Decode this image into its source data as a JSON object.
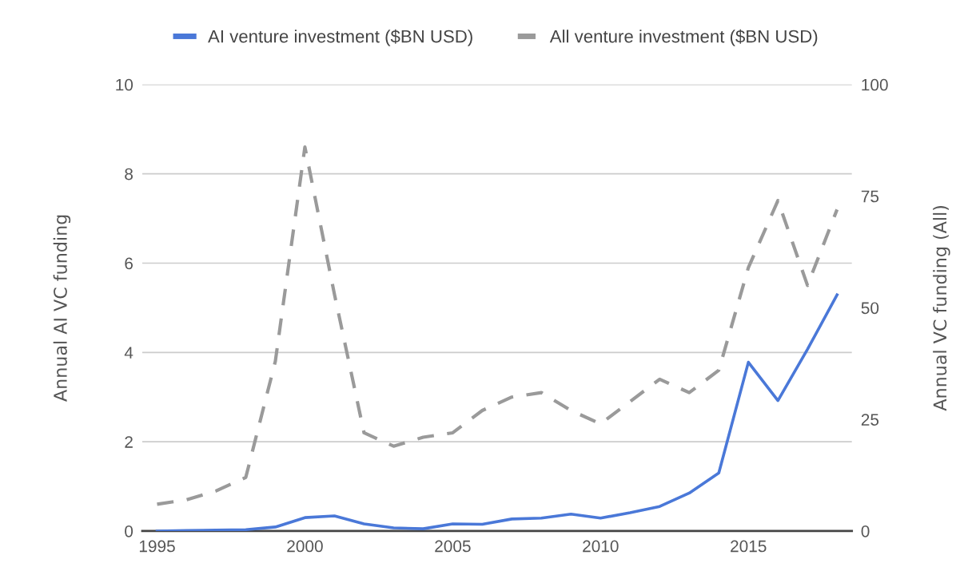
{
  "chart_data": {
    "type": "line",
    "ylabel": "Annual AI VC funding",
    "y2label": "Annual VC funding (All)",
    "x": [
      1995,
      1996,
      1997,
      1998,
      1999,
      2000,
      2001,
      2002,
      2003,
      2004,
      2005,
      2006,
      2007,
      2008,
      2009,
      2010,
      2011,
      2012,
      2013,
      2014,
      2015,
      2016,
      2017,
      2018
    ],
    "series": [
      {
        "name": "AI venture investment ($BN USD)",
        "color": "#4a78d8",
        "line_style": "solid",
        "values": [
          0,
          0.01,
          0.02,
          0.03,
          0.09,
          0.3,
          0.34,
          0.16,
          0.07,
          0.05,
          0.16,
          0.15,
          0.27,
          0.29,
          0.38,
          0.29,
          0.41,
          0.55,
          0.85,
          1.3,
          3.78,
          2.92,
          4.07,
          5.29
        ]
      },
      {
        "name": "All venture investment ($BN USD)",
        "color": "#9a9a9a",
        "line_style": "dashed",
        "axis": "y2",
        "values": [
          6,
          7,
          9,
          12,
          38,
          86,
          53,
          22,
          19,
          21,
          22,
          27,
          30,
          31,
          27,
          24,
          29,
          34,
          31,
          36,
          59,
          74,
          55,
          72
        ]
      }
    ],
    "xlim": [
      1994.5,
      2018.5
    ],
    "xticks": [
      1995,
      2000,
      2005,
      2010,
      2015
    ],
    "ylim": [
      0,
      10
    ],
    "yticks": [
      0,
      2,
      4,
      6,
      8,
      10
    ],
    "y2lim": [
      0,
      100
    ],
    "y2ticks": [
      0,
      25,
      50,
      75,
      100
    ],
    "grid": "y",
    "legend": "top",
    "marker": "none"
  }
}
